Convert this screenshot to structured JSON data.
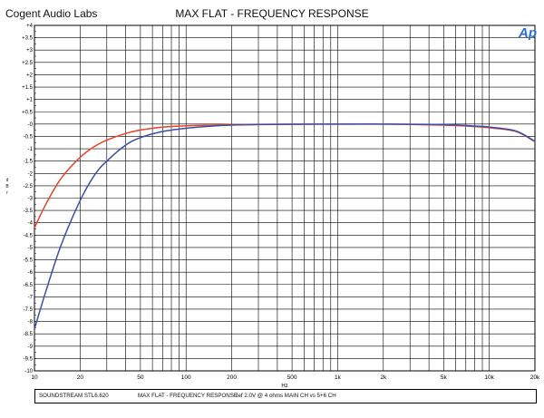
{
  "header": {
    "company": "Cogent Audio Labs",
    "title": "MAX FLAT  -  FREQUENCY RESPONSE",
    "logo_text": "Ap"
  },
  "footer": {
    "model": "SOUNDSTREAM STL6.620",
    "test_name": "MAX FLAT  -  FREQUENCY RESPONSE",
    "conditions": "Ref 2.0V @ 4 ohms   MAIN CH vs 5+6 CH"
  },
  "chart_data": {
    "type": "line",
    "title": "MAX FLAT  -  FREQUENCY RESPONSE",
    "xlabel": "Hz",
    "ylabel": "dBr",
    "ylabel_chars": [
      "d",
      "B",
      "r"
    ],
    "x_scale": "log",
    "xlim": [
      10,
      20000
    ],
    "ylim": [
      -10,
      4
    ],
    "grid": true,
    "x_tick_labels": [
      {
        "value": 10,
        "label": "10"
      },
      {
        "value": 20,
        "label": "20"
      },
      {
        "value": 50,
        "label": "50"
      },
      {
        "value": 100,
        "label": "100"
      },
      {
        "value": 200,
        "label": "200"
      },
      {
        "value": 500,
        "label": "500"
      },
      {
        "value": 1000,
        "label": "1k"
      },
      {
        "value": 2000,
        "label": "2k"
      },
      {
        "value": 5000,
        "label": "5k"
      },
      {
        "value": 10000,
        "label": "10k"
      },
      {
        "value": 20000,
        "label": "20k"
      }
    ],
    "y_ticks": [
      4,
      3.5,
      3,
      2.5,
      2,
      1.5,
      1,
      0.5,
      0,
      -0.5,
      -1,
      -1.5,
      -2,
      -2.5,
      -3,
      -3.5,
      -4,
      -4.5,
      -5,
      -5.5,
      -6,
      -6.5,
      -7,
      -7.5,
      -8,
      -8.5,
      -9,
      -9.5,
      -10
    ],
    "y_tick_labels": [
      "+4",
      "+3.5",
      "+3",
      "+2.5",
      "+2",
      "+1.5",
      "+1",
      "+0.5",
      "-0",
      "-0.5",
      "-1",
      "-1.5",
      "-2",
      "-2.5",
      "-3",
      "-3.5",
      "-4",
      "-4.5",
      "-5",
      "-5.5",
      "-6",
      "-6.5",
      "-7",
      "-7.5",
      "-8",
      "-8.5",
      "-9",
      "-9.5",
      "-10"
    ],
    "series": [
      {
        "color": "#e8432a",
        "points": [
          [
            10,
            -4.2
          ],
          [
            12,
            -3.2
          ],
          [
            15,
            -2.2
          ],
          [
            20,
            -1.35
          ],
          [
            25,
            -0.9
          ],
          [
            30,
            -0.65
          ],
          [
            40,
            -0.38
          ],
          [
            50,
            -0.24
          ],
          [
            70,
            -0.12
          ],
          [
            100,
            -0.07
          ],
          [
            150,
            -0.04
          ],
          [
            200,
            -0.02
          ],
          [
            300,
            -0.01
          ],
          [
            500,
            0
          ],
          [
            1000,
            0
          ],
          [
            2000,
            0
          ],
          [
            5000,
            -0.04
          ],
          [
            8000,
            -0.1
          ],
          [
            10000,
            -0.15
          ],
          [
            15000,
            -0.3
          ],
          [
            20000,
            -0.72
          ]
        ]
      },
      {
        "color": "#3a4fa8",
        "points": [
          [
            10,
            -8.3
          ],
          [
            12,
            -6.7
          ],
          [
            15,
            -4.9
          ],
          [
            20,
            -3.1
          ],
          [
            25,
            -2.05
          ],
          [
            30,
            -1.5
          ],
          [
            40,
            -0.85
          ],
          [
            50,
            -0.55
          ],
          [
            70,
            -0.3
          ],
          [
            100,
            -0.17
          ],
          [
            150,
            -0.08
          ],
          [
            200,
            -0.04
          ],
          [
            300,
            -0.02
          ],
          [
            500,
            -0.01
          ],
          [
            1000,
            0
          ],
          [
            2000,
            0
          ],
          [
            5000,
            -0.02
          ],
          [
            8000,
            -0.08
          ],
          [
            10000,
            -0.12
          ],
          [
            15000,
            -0.28
          ],
          [
            20000,
            -0.7
          ]
        ]
      }
    ]
  }
}
